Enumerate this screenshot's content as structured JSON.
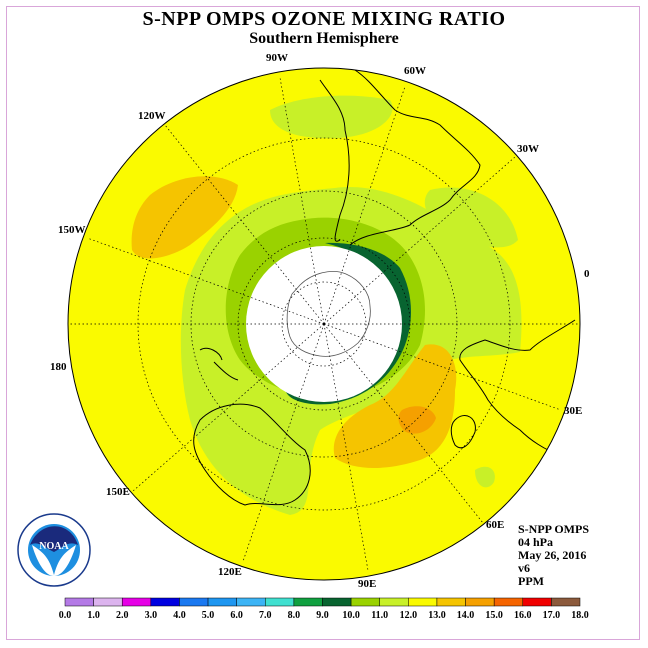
{
  "title": "S-NPP OMPS OZONE MIXING RATIO",
  "subtitle": "Southern Hemisphere",
  "info": {
    "instrument": "S-NPP OMPS",
    "level": "04 hPa",
    "date": "May 26, 2016",
    "version": "v6",
    "units": "PPM"
  },
  "logo": {
    "text": "NOAA",
    "ring_text": "NATIONAL OCEANIC AND ATMOSPHERIC ADMINISTRATION"
  },
  "longitude_labels": [
    "90W",
    "60W",
    "30W",
    "0",
    "30E",
    "60E",
    "90E",
    "120E",
    "150E",
    "180",
    "150W",
    "120W"
  ],
  "colorbar": {
    "ticks": [
      "0.0",
      "1.0",
      "2.0",
      "3.0",
      "4.0",
      "5.0",
      "6.0",
      "7.0",
      "8.0",
      "9.0",
      "10.0",
      "11.0",
      "12.0",
      "13.0",
      "14.0",
      "15.0",
      "16.0",
      "17.0",
      "18.0"
    ],
    "colors": [
      "#b47ae6",
      "#dcb4ee",
      "#e600e6",
      "#0000e0",
      "#1a78f0",
      "#1e96f0",
      "#3cb4f5",
      "#40e0d0",
      "#10a040",
      "#086430",
      "#9ad200",
      "#c8f028",
      "#fafa00",
      "#f5c400",
      "#f5a000",
      "#f56400",
      "#f00000",
      "#8c5a3c"
    ]
  },
  "chart_data": {
    "type": "heatmap",
    "projection": "south-polar-stereographic",
    "variable": "ozone mixing ratio",
    "units": "PPM",
    "pressure_level": "04 hPa",
    "date": "May 26, 2016",
    "value_range": [
      0.0,
      18.0
    ],
    "contour_interval": 1.0,
    "regions": [
      {
        "location": "most of hemisphere",
        "range": [
          12.0,
          13.0
        ]
      },
      {
        "location": "ring around polar night (40S-60S)",
        "range": [
          11.0,
          12.0
        ]
      },
      {
        "location": "edge of polar night, 0-30E and 60E-90E",
        "range": [
          9.0,
          10.0
        ]
      },
      {
        "location": "south of Australia / Indian Ocean",
        "range": [
          13.0,
          14.0
        ]
      },
      {
        "location": "South Pacific near 120W-150W",
        "range": [
          13.0,
          14.0
        ]
      },
      {
        "location": "core south-west of Australia",
        "range": [
          14.0,
          15.0
        ]
      }
    ]
  }
}
